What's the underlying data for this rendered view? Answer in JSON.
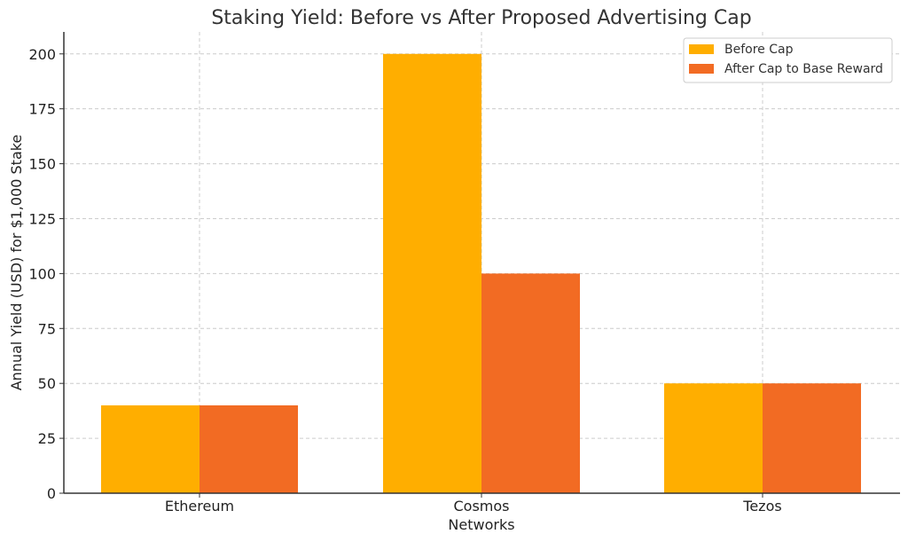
{
  "chart_data": {
    "type": "bar",
    "title": "Staking Yield: Before vs After Proposed Advertising Cap",
    "xlabel": "Networks",
    "ylabel": "Annual Yield (USD) for $1,000 Stake",
    "categories": [
      "Ethereum",
      "Cosmos",
      "Tezos"
    ],
    "series": [
      {
        "name": "Before Cap",
        "values": [
          40,
          200,
          50
        ],
        "color": "#FFAE00"
      },
      {
        "name": "After Cap to Base Reward",
        "values": [
          40,
          100,
          50
        ],
        "color": "#F26B23"
      }
    ],
    "ylim": [
      0,
      210
    ],
    "yticks": [
      0,
      25,
      50,
      75,
      100,
      125,
      150,
      175,
      200
    ],
    "grid": true,
    "legend_position": "top-right"
  }
}
